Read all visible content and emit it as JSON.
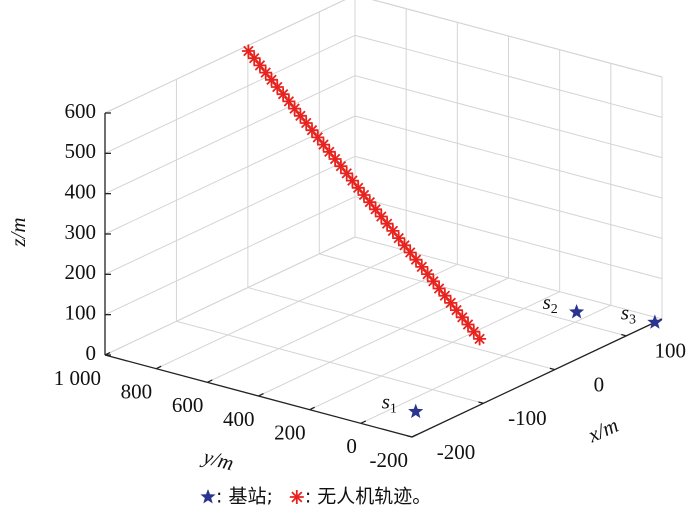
{
  "chart_data": {
    "type": "scatter3d",
    "xlabel": "x/m",
    "ylabel": "y/m",
    "zlabel": "z/m",
    "xlim": [
      -200,
      150
    ],
    "xticks": [
      -200,
      -100,
      0,
      100
    ],
    "ylim": [
      -200,
      1000
    ],
    "yticks": [
      -200,
      0,
      200,
      400,
      600,
      800,
      {
        "value": 1000,
        "label": "1 000"
      }
    ],
    "zlim": [
      0,
      600
    ],
    "zticks": [
      0,
      100,
      200,
      300,
      400,
      500,
      600
    ],
    "grid": true,
    "series": [
      {
        "name": ": 基站;",
        "marker": "star",
        "color": "#2b3590",
        "labels": [
          "s1",
          "s2",
          "s3"
        ],
        "x": [
          -150,
          120,
          140
        ],
        "y": [
          -75,
          50,
          -200
        ],
        "z": [
          0,
          0,
          0
        ]
      },
      {
        "name": ": 无人机轨迹。",
        "marker": "asterisk",
        "color": "#e8231e",
        "x": [
          20,
          19.25,
          18.5,
          17.75,
          17,
          16.25,
          15.5,
          14.75,
          14,
          13.25,
          12.5,
          11.75,
          11,
          10.25,
          9.5,
          8.75,
          8,
          7.25,
          6.5,
          5.75,
          5,
          4.25,
          3.5,
          2.75,
          2,
          1.25,
          0.5,
          -0.25,
          -1,
          -1.75,
          -2.5,
          -3.25,
          -4,
          -4.75,
          -5.5,
          -6.25,
          -7,
          -7.75,
          -8.5,
          -9.25,
          -10
        ],
        "y": [
          150,
          170.5,
          191,
          211.5,
          232,
          252.5,
          273,
          293.5,
          314,
          334.5,
          355,
          375.5,
          396,
          416.5,
          437,
          457.5,
          478,
          498.5,
          519,
          539.5,
          560,
          580.5,
          601,
          621.5,
          642,
          662.5,
          683,
          703.5,
          724,
          744.5,
          765,
          785.5,
          806,
          826.5,
          847,
          867.5,
          888,
          908.5,
          929,
          949.5,
          970
        ],
        "z": [
          0,
          15,
          30,
          45,
          60,
          75,
          90,
          105,
          120,
          135,
          150,
          165,
          180,
          195,
          210,
          225,
          240,
          255,
          270,
          285,
          300,
          315,
          330,
          345,
          360,
          375,
          390,
          405,
          420,
          435,
          450,
          465,
          480,
          495,
          510,
          525,
          540,
          555,
          570,
          585,
          600
        ]
      }
    ]
  }
}
